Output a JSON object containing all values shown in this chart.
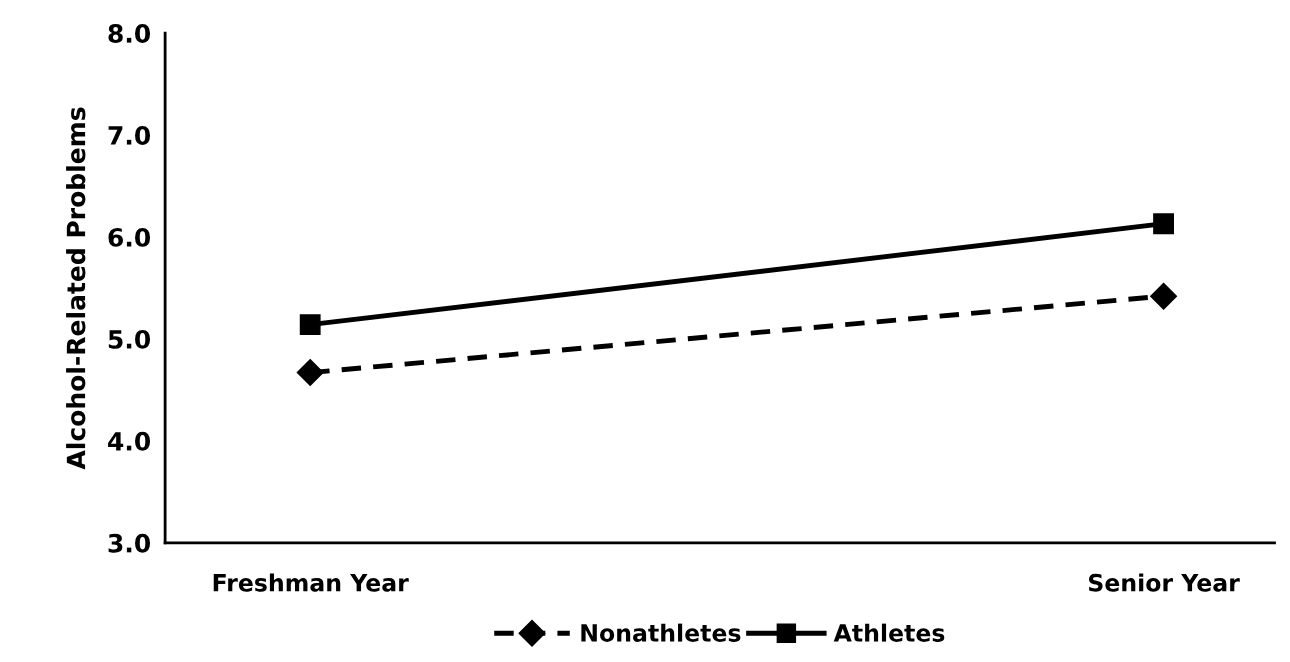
{
  "chart_data": {
    "type": "line",
    "ylabel": "Alcohol-Related Problems",
    "categories": [
      "Freshman Year",
      "Senior Year"
    ],
    "series": [
      {
        "name": "Nonathletes",
        "color": "#000000",
        "values": [
          4.67,
          5.42
        ],
        "marker": "diamond",
        "line_style": "dashed"
      },
      {
        "name": "Athletes",
        "color": "#000000",
        "values": [
          5.14,
          6.13
        ],
        "marker": "square",
        "line_style": "solid"
      }
    ],
    "ylim": [
      3.0,
      8.0
    ],
    "yticks": [
      {
        "value": 3,
        "label": "3.0"
      },
      {
        "value": 4,
        "label": "4.0"
      },
      {
        "value": 5,
        "label": "5.0"
      },
      {
        "value": 6,
        "label": "6.0"
      },
      {
        "value": 7,
        "label": "7.0"
      },
      {
        "value": 8,
        "label": "8.0"
      }
    ],
    "grid": false,
    "legend": "bottom"
  }
}
